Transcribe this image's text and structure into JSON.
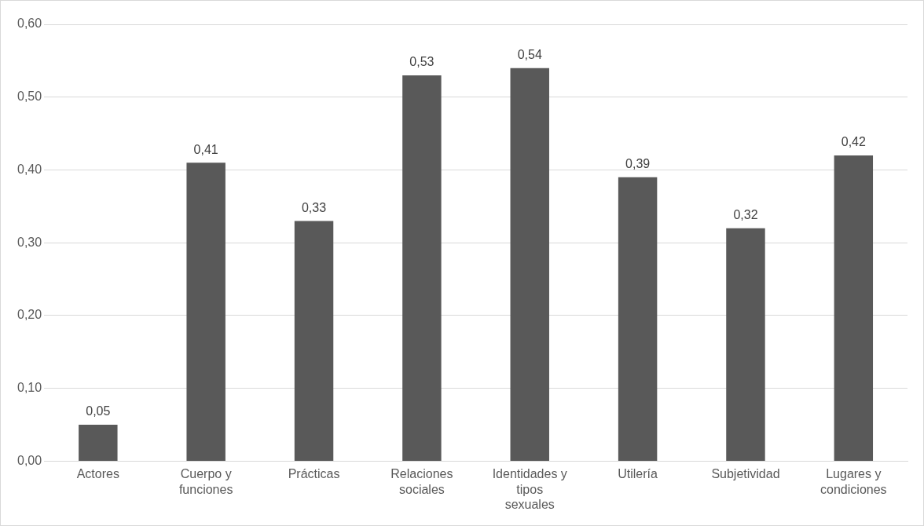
{
  "chart_data": {
    "type": "bar",
    "categories": [
      "Actores",
      "Cuerpo y funciones",
      "Prácticas",
      "Relaciones sociales",
      "Identidades y tipos sexuales",
      "Utilería",
      "Subjetividad",
      "Lugares y condiciones"
    ],
    "values": [
      0.05,
      0.41,
      0.33,
      0.53,
      0.54,
      0.39,
      0.32,
      0.42
    ],
    "value_labels": [
      "0,05",
      "0,41",
      "0,33",
      "0,53",
      "0,54",
      "0,39",
      "0,32",
      "0,42"
    ],
    "color": "#595959",
    "ylim": [
      0,
      0.6
    ],
    "yticks": [
      {
        "value": 0,
        "label": "0,00"
      },
      {
        "value": 0.1,
        "label": "0,10"
      },
      {
        "value": 0.2,
        "label": "0,20"
      },
      {
        "value": 0.3,
        "label": "0,30"
      },
      {
        "value": 0.4,
        "label": "0,40"
      },
      {
        "value": 0.5,
        "label": "0,50"
      },
      {
        "value": 0.6,
        "label": "0,60"
      }
    ],
    "grid": "y",
    "legend": false
  }
}
